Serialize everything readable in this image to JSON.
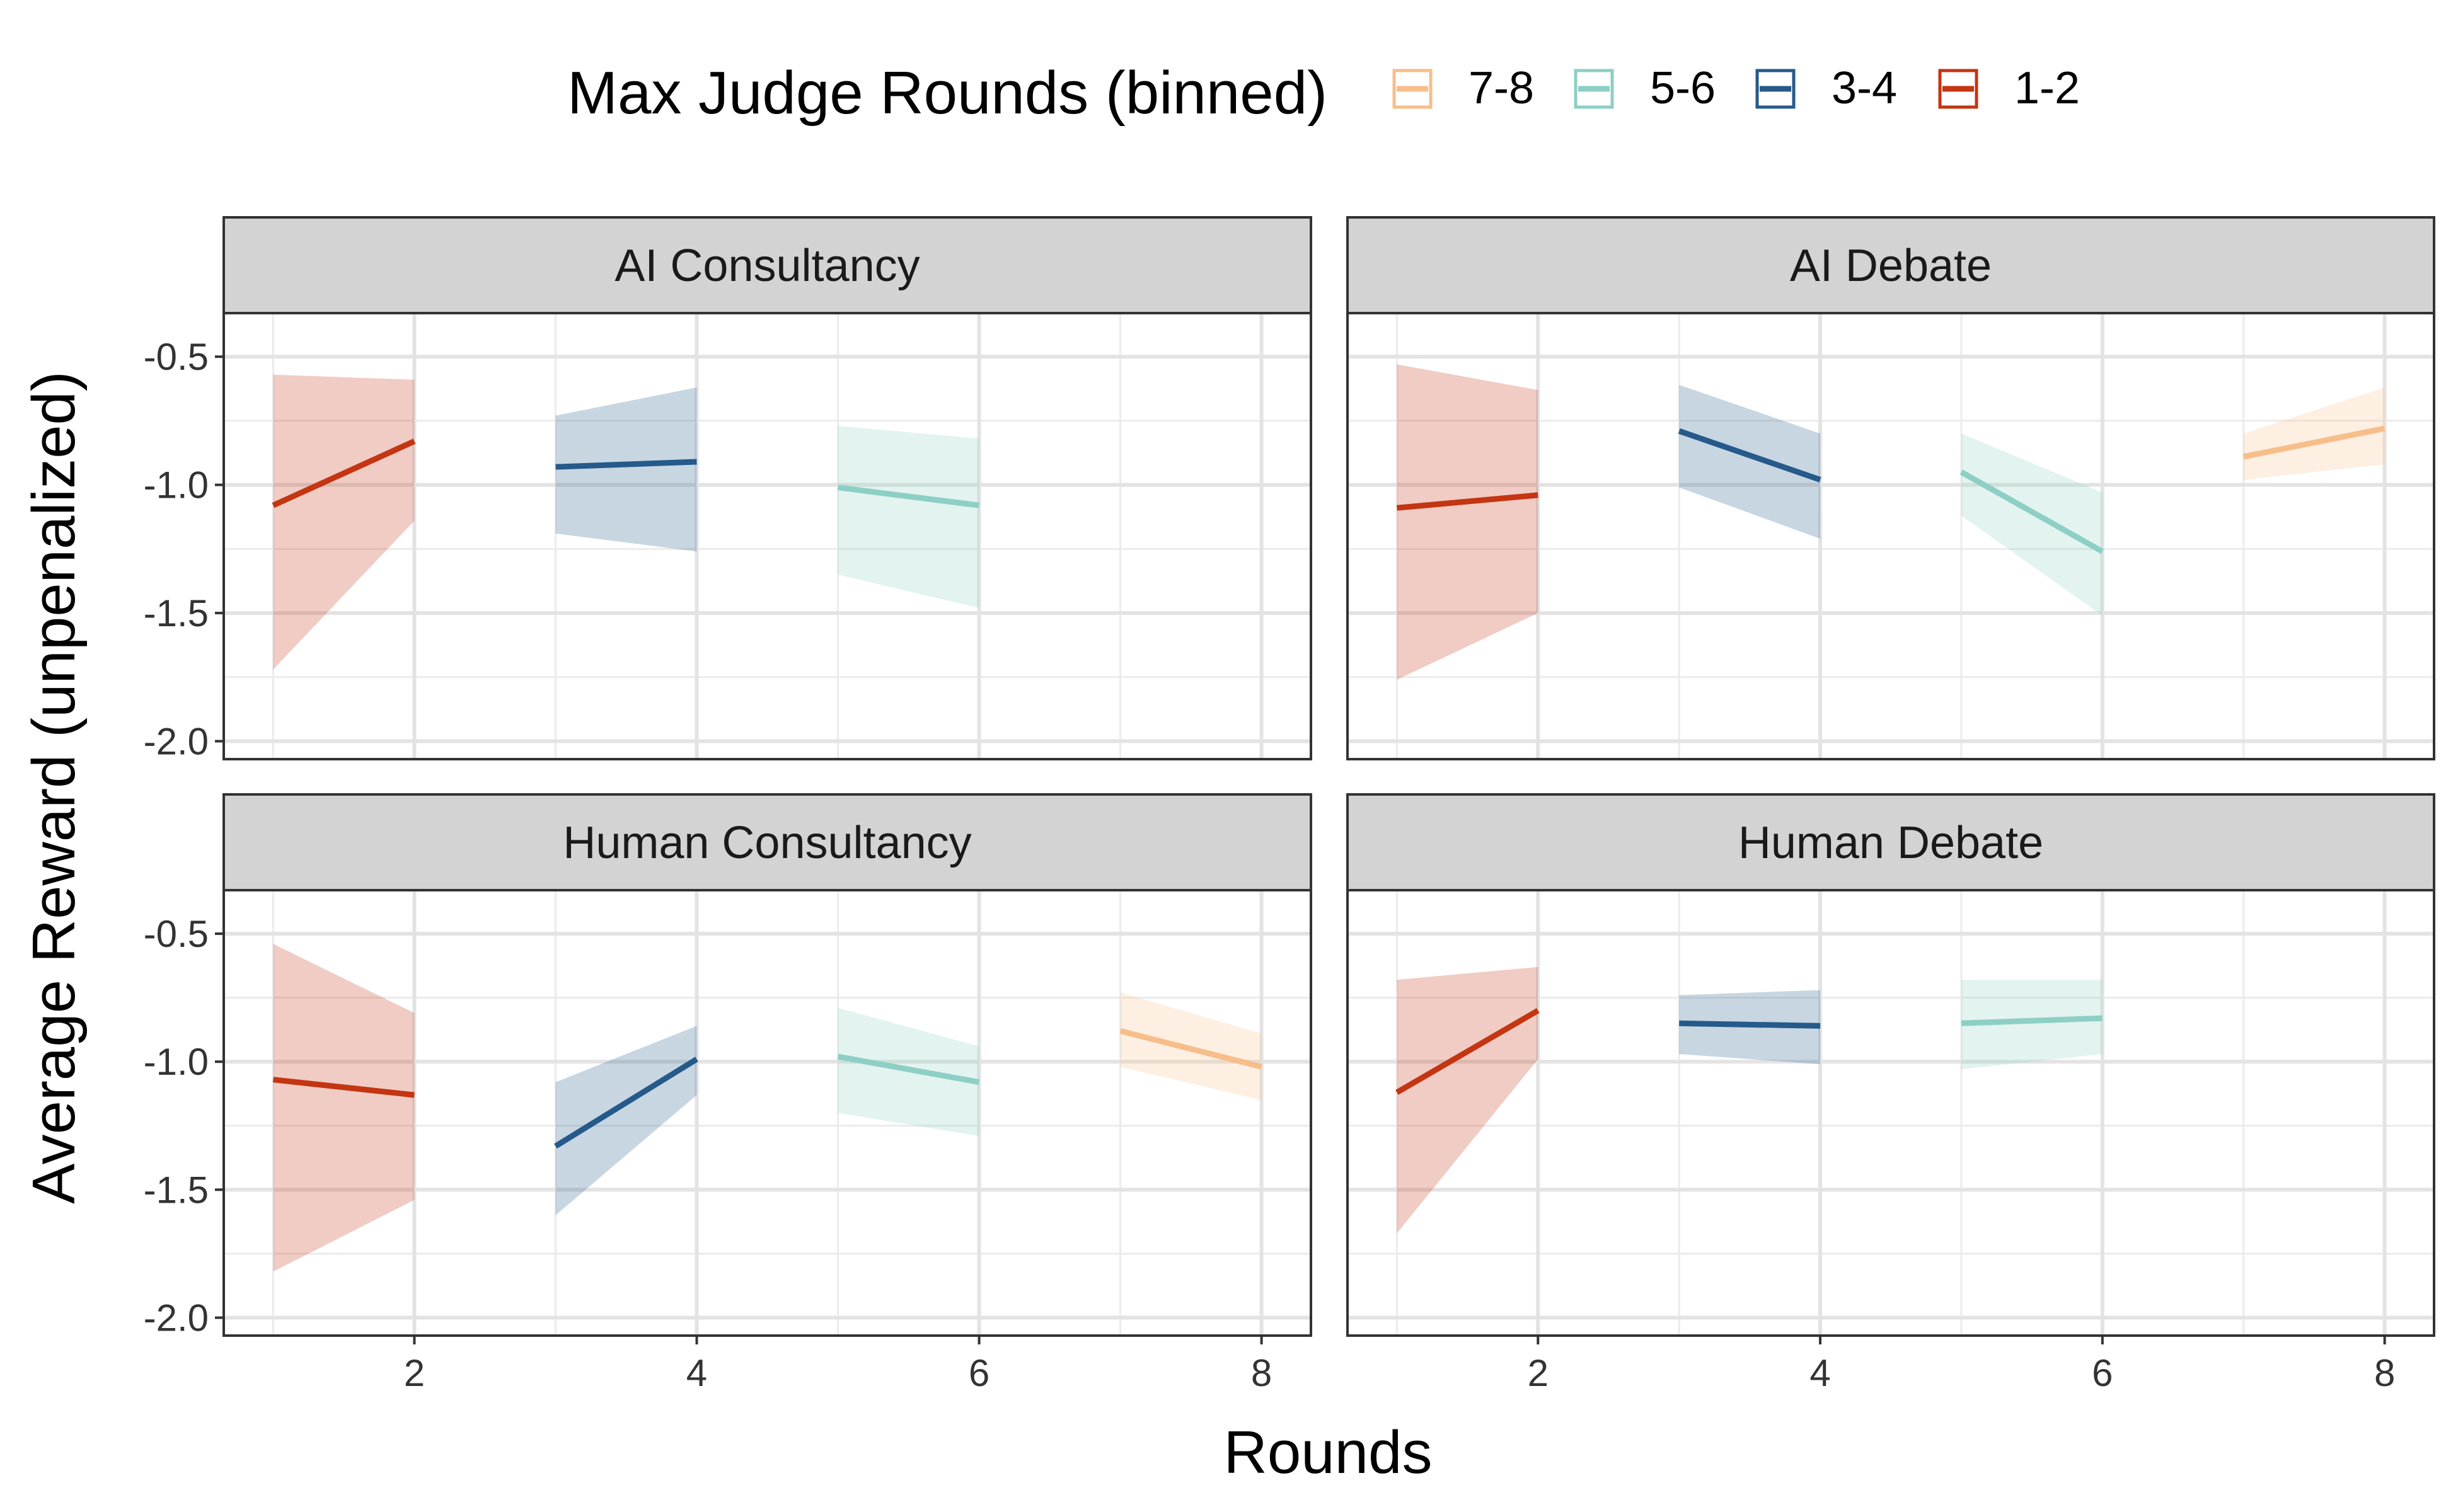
{
  "legend": {
    "title": "Max Judge Rounds (binned)",
    "entries": [
      {
        "label": "7-8",
        "color": "#F7BE8A"
      },
      {
        "label": "5-6",
        "color": "#8DCFC4"
      },
      {
        "label": "3-4",
        "color": "#255A8A"
      },
      {
        "label": "1-2",
        "color": "#C43512"
      }
    ]
  },
  "chart_data": {
    "type": "line",
    "xlabel": "Rounds",
    "ylabel": "Average Reward (unpenalized)",
    "xlim": [
      0.65,
      8.35
    ],
    "ylim": [
      -2.07,
      -0.33
    ],
    "x_ticks": [
      2,
      4,
      6,
      8
    ],
    "y_ticks": [
      -0.5,
      -1.0,
      -1.5,
      -2.0
    ],
    "x_tick_labels": [
      "2",
      "4",
      "6",
      "8"
    ],
    "y_tick_labels": [
      "-0.5",
      "-1.0",
      "-1.5",
      "-2.0"
    ],
    "grid": true,
    "legend_position": "top",
    "facets": [
      {
        "title": "AI Consultancy",
        "series": [
          {
            "name": "1-2",
            "x": [
              1,
              2
            ],
            "y": [
              -1.08,
              -0.83
            ],
            "lower": [
              -1.72,
              -1.14
            ],
            "upper": [
              -0.57,
              -0.59
            ]
          },
          {
            "name": "3-4",
            "x": [
              3,
              4
            ],
            "y": [
              -0.93,
              -0.91
            ],
            "lower": [
              -1.19,
              -1.26
            ],
            "upper": [
              -0.73,
              -0.62
            ]
          },
          {
            "name": "5-6",
            "x": [
              5,
              6
            ],
            "y": [
              -1.01,
              -1.08
            ],
            "lower": [
              -1.35,
              -1.48
            ],
            "upper": [
              -0.77,
              -0.82
            ]
          }
        ]
      },
      {
        "title": "AI Debate",
        "series": [
          {
            "name": "1-2",
            "x": [
              1,
              2
            ],
            "y": [
              -1.09,
              -1.04
            ],
            "lower": [
              -1.76,
              -1.5
            ],
            "upper": [
              -0.53,
              -0.63
            ]
          },
          {
            "name": "3-4",
            "x": [
              3,
              4
            ],
            "y": [
              -0.79,
              -0.98
            ],
            "lower": [
              -1.01,
              -1.21
            ],
            "upper": [
              -0.61,
              -0.8
            ]
          },
          {
            "name": "5-6",
            "x": [
              5,
              6
            ],
            "y": [
              -0.95,
              -1.26
            ],
            "lower": [
              -1.12,
              -1.51
            ],
            "upper": [
              -0.8,
              -1.03
            ]
          },
          {
            "name": "7-8",
            "x": [
              7,
              8
            ],
            "y": [
              -0.89,
              -0.78
            ],
            "lower": [
              -0.98,
              -0.92
            ],
            "upper": [
              -0.8,
              -0.62
            ]
          }
        ]
      },
      {
        "title": "Human Consultancy",
        "series": [
          {
            "name": "1-2",
            "x": [
              1,
              2
            ],
            "y": [
              -1.07,
              -1.13
            ],
            "lower": [
              -1.82,
              -1.54
            ],
            "upper": [
              -0.54,
              -0.81
            ]
          },
          {
            "name": "3-4",
            "x": [
              3,
              4
            ],
            "y": [
              -1.33,
              -0.99
            ],
            "lower": [
              -1.6,
              -1.13
            ],
            "upper": [
              -1.08,
              -0.86
            ]
          },
          {
            "name": "5-6",
            "x": [
              5,
              6
            ],
            "y": [
              -0.98,
              -1.08
            ],
            "lower": [
              -1.2,
              -1.29
            ],
            "upper": [
              -0.79,
              -0.94
            ]
          },
          {
            "name": "7-8",
            "x": [
              7,
              8
            ],
            "y": [
              -0.88,
              -1.02
            ],
            "lower": [
              -1.02,
              -1.15
            ],
            "upper": [
              -0.73,
              -0.89
            ]
          }
        ]
      },
      {
        "title": "Human Debate",
        "series": [
          {
            "name": "1-2",
            "x": [
              1,
              2
            ],
            "y": [
              -1.12,
              -0.8
            ],
            "lower": [
              -1.67,
              -0.99
            ],
            "upper": [
              -0.68,
              -0.63
            ]
          },
          {
            "name": "3-4",
            "x": [
              3,
              4
            ],
            "y": [
              -0.85,
              -0.86
            ],
            "lower": [
              -0.97,
              -1.01
            ],
            "upper": [
              -0.74,
              -0.72
            ]
          },
          {
            "name": "5-6",
            "x": [
              5,
              6
            ],
            "y": [
              -0.85,
              -0.83
            ],
            "lower": [
              -1.03,
              -0.97
            ],
            "upper": [
              -0.68,
              -0.68
            ]
          }
        ]
      }
    ]
  }
}
